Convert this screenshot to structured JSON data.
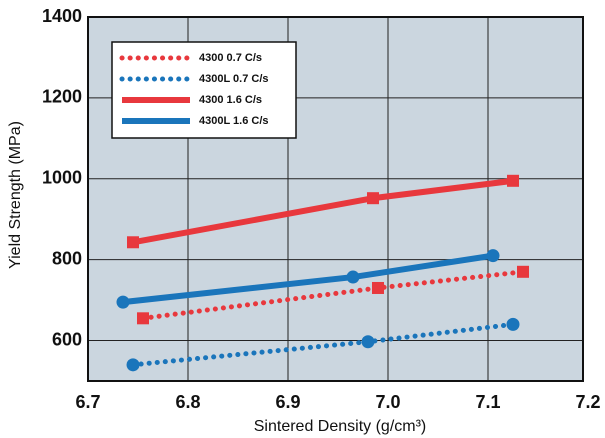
{
  "chart_data": {
    "type": "line",
    "xlabel": "Sintered Density (g/cm³)",
    "ylabel": "Yield Strength (MPa)",
    "xlim": [
      6.7,
      7.2
    ],
    "xticks": [
      6.7,
      6.8,
      6.9,
      {
        "value": 7,
        "label": "7.0"
      },
      7.1,
      7.2
    ],
    "ylim": [
      500,
      1400
    ],
    "yticks": [
      600,
      800,
      1000,
      1200,
      1400
    ],
    "grid": true,
    "legend": "upper left",
    "series": [
      {
        "name": "4300 0.7 C/s",
        "color": "#e8383d",
        "style": "dotted",
        "marker": "square",
        "x": [
          6.755,
          6.99,
          7.135
        ],
        "values": [
          655,
          730,
          770
        ]
      },
      {
        "name": "4300L 0.7 C/s",
        "color": "#1a75bb",
        "style": "dotted",
        "marker": "circle",
        "x": [
          6.745,
          6.98,
          7.125
        ],
        "values": [
          540,
          597,
          640
        ]
      },
      {
        "name": "4300 1.6 C/s",
        "color": "#e8383d",
        "style": "solid",
        "marker": "square",
        "x": [
          6.745,
          6.985,
          7.125
        ],
        "values": [
          843,
          952,
          995
        ]
      },
      {
        "name": "4300L 1.6 C/s",
        "color": "#1a75bb",
        "style": "solid",
        "marker": "circle",
        "x": [
          6.735,
          6.965,
          7.105
        ],
        "values": [
          695,
          757,
          810
        ]
      }
    ]
  }
}
